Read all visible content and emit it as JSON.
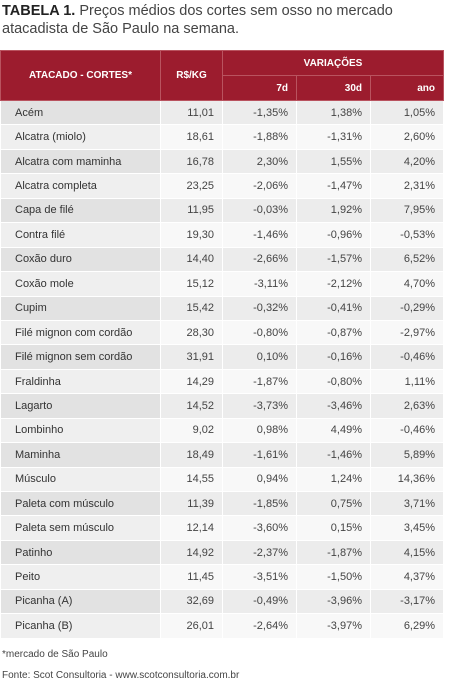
{
  "title": {
    "label": "TABELA 1.",
    "text": "Preços médios dos cortes sem osso no mercado atacadista de São Paulo na semana."
  },
  "table": {
    "header": {
      "name": "ATACADO - CORTES*",
      "price": "R$/KG",
      "group": "VARIAÇÕES",
      "columns": [
        "7d",
        "30d",
        "ano"
      ]
    },
    "rows": [
      [
        "Acém",
        "11,01",
        "-1,35%",
        "1,38%",
        "1,05%"
      ],
      [
        "Alcatra (miolo)",
        "18,61",
        "-1,88%",
        "-1,31%",
        "2,60%"
      ],
      [
        "Alcatra com maminha",
        "16,78",
        "2,30%",
        "1,55%",
        "4,20%"
      ],
      [
        "Alcatra completa",
        "23,25",
        "-2,06%",
        "-1,47%",
        "2,31%"
      ],
      [
        "Capa de filé",
        "11,95",
        "-0,03%",
        "1,92%",
        "7,95%"
      ],
      [
        "Contra filé",
        "19,30",
        "-1,46%",
        "-0,96%",
        "-0,53%"
      ],
      [
        "Coxão duro",
        "14,40",
        "-2,66%",
        "-1,57%",
        "6,52%"
      ],
      [
        "Coxão mole",
        "15,12",
        "-3,11%",
        "-2,12%",
        "4,70%"
      ],
      [
        "Cupim",
        "15,42",
        "-0,32%",
        "-0,41%",
        "-0,29%"
      ],
      [
        "Filé mignon com cordão",
        "28,30",
        "-0,80%",
        "-0,87%",
        "-2,97%"
      ],
      [
        "Filé mignon sem cordão",
        "31,91",
        "0,10%",
        "-0,16%",
        "-0,46%"
      ],
      [
        "Fraldinha",
        "14,29",
        "-1,87%",
        "-0,80%",
        "1,11%"
      ],
      [
        "Lagarto",
        "14,52",
        "-3,73%",
        "-3,46%",
        "2,63%"
      ],
      [
        "Lombinho",
        "9,02",
        "0,98%",
        "4,49%",
        "-0,46%"
      ],
      [
        "Maminha",
        "18,49",
        "-1,61%",
        "-1,46%",
        "5,89%"
      ],
      [
        "Músculo",
        "14,55",
        "0,94%",
        "1,24%",
        "14,36%"
      ],
      [
        "Paleta com músculo",
        "11,39",
        "-1,85%",
        "0,75%",
        "3,71%"
      ],
      [
        "Paleta sem músculo",
        "12,14",
        "-3,60%",
        "0,15%",
        "3,45%"
      ],
      [
        "Patinho",
        "14,92",
        "-2,37%",
        "-1,87%",
        "4,15%"
      ],
      [
        "Peito",
        "11,45",
        "-3,51%",
        "-1,50%",
        "4,37%"
      ],
      [
        "Picanha (A)",
        "32,69",
        "-0,49%",
        "-3,96%",
        "-3,17%"
      ],
      [
        "Picanha (B)",
        "26,01",
        "-2,64%",
        "-3,97%",
        "6,29%"
      ]
    ]
  },
  "footnotes": [
    "*mercado de São Paulo",
    "Fonte: Scot Consultoria - www.scotconsultoria.com.br"
  ]
}
